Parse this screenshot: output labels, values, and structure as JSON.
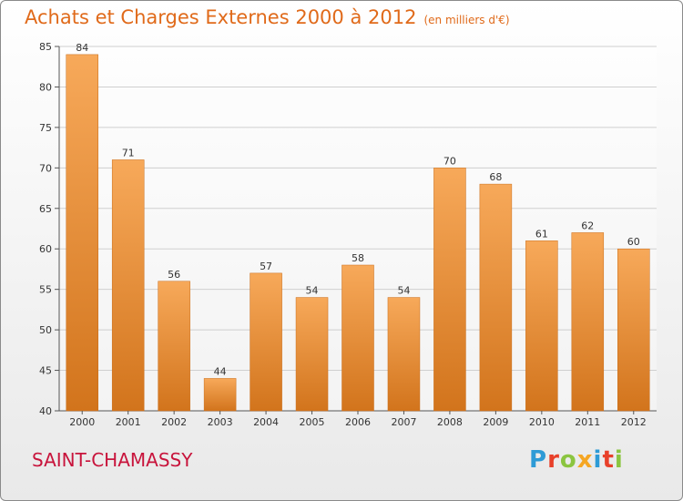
{
  "header": {
    "title": "Achats et Charges Externes 2000 à 2012",
    "unit": "(en milliers d'€)"
  },
  "commune": "SAINT-CHAMASSY",
  "logo": {
    "text": "Proxiti",
    "letters": [
      {
        "ch": "P",
        "color": "#2e9bd6"
      },
      {
        "ch": "r",
        "color": "#e8402a"
      },
      {
        "ch": "o",
        "color": "#8bc540"
      },
      {
        "ch": "x",
        "color": "#f5a623"
      },
      {
        "ch": "i",
        "color": "#2e9bd6"
      },
      {
        "ch": "t",
        "color": "#e8402a"
      },
      {
        "ch": "i",
        "color": "#8bc540"
      }
    ]
  },
  "colors": {
    "title": "#e06a1a",
    "commune": "#c8143c",
    "bar_top": "#f7a95a",
    "bar_bottom": "#d2741c"
  },
  "chart_data": {
    "type": "bar",
    "categories": [
      "2000",
      "2001",
      "2002",
      "2003",
      "2004",
      "2005",
      "2006",
      "2007",
      "2008",
      "2009",
      "2010",
      "2011",
      "2012"
    ],
    "values": [
      84,
      71,
      56,
      44,
      57,
      54,
      58,
      54,
      70,
      68,
      61,
      62,
      60
    ],
    "ylim": [
      40,
      85
    ],
    "yticks": [
      40,
      45,
      50,
      55,
      60,
      65,
      70,
      75,
      80,
      85
    ],
    "grid": true
  }
}
